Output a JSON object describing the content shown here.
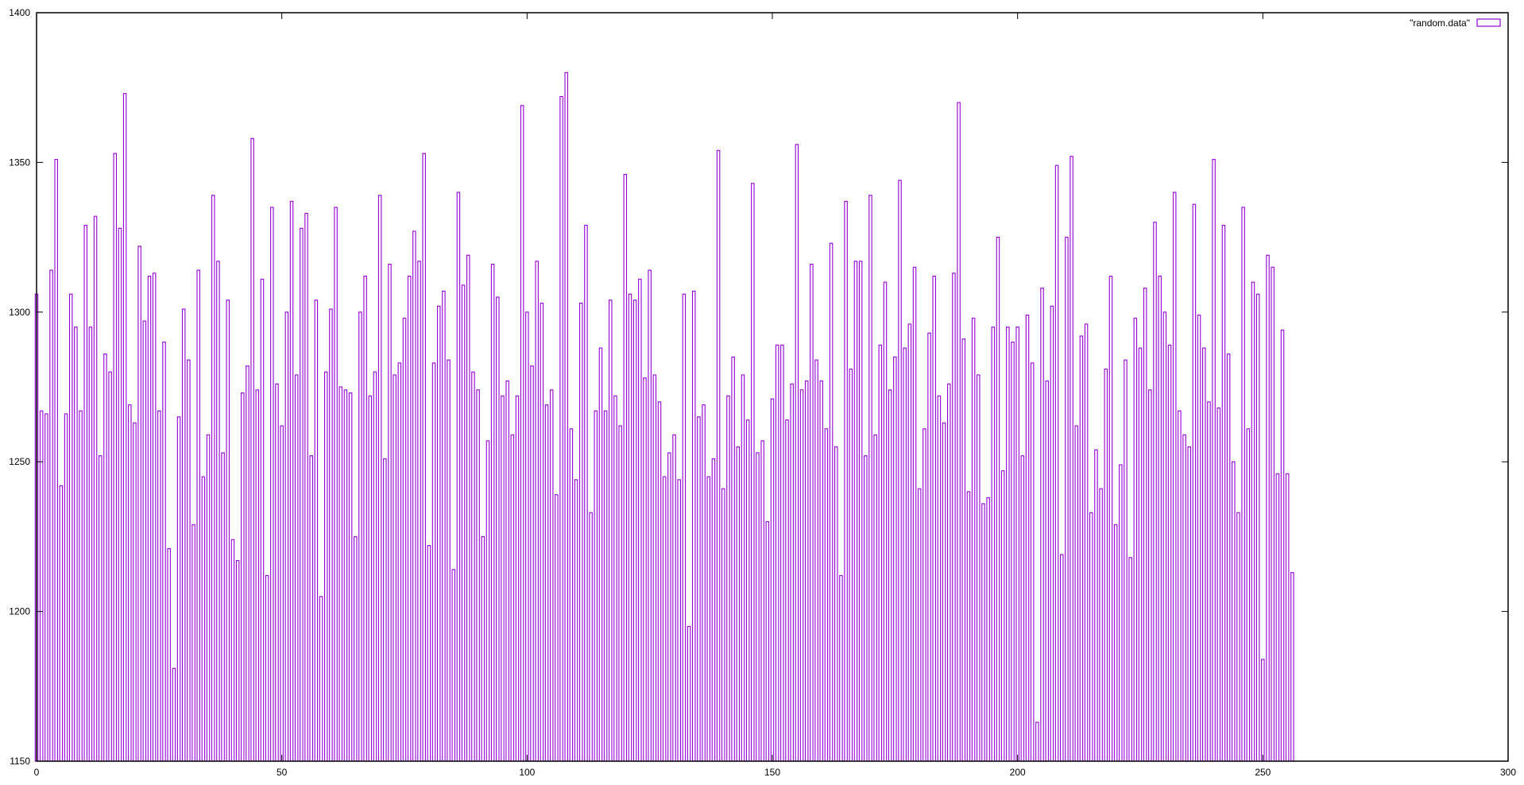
{
  "chart_data": {
    "type": "bar",
    "xlim": [
      0,
      300
    ],
    "ylim": [
      1150,
      1400
    ],
    "xticks": [
      0,
      50,
      100,
      150,
      200,
      250,
      300
    ],
    "yticks": [
      1150,
      1200,
      1250,
      1300,
      1350,
      1400
    ],
    "grid": false,
    "legend_position": "top-right",
    "bar_color": "#9400d3",
    "series": [
      {
        "name": "\"random.data\"",
        "x_start": 0,
        "values": [
          1306,
          1267,
          1266,
          1314,
          1351,
          1242,
          1266,
          1306,
          1295,
          1267,
          1329,
          1295,
          1332,
          1252,
          1286,
          1280,
          1353,
          1328,
          1373,
          1269,
          1263,
          1322,
          1297,
          1312,
          1313,
          1267,
          1290,
          1221,
          1181,
          1265,
          1301,
          1284,
          1229,
          1314,
          1245,
          1259,
          1339,
          1317,
          1253,
          1304,
          1224,
          1217,
          1273,
          1282,
          1358,
          1274,
          1311,
          1212,
          1335,
          1276,
          1262,
          1300,
          1337,
          1279,
          1328,
          1333,
          1252,
          1304,
          1205,
          1280,
          1301,
          1335,
          1275,
          1274,
          1273,
          1225,
          1300,
          1312,
          1272,
          1280,
          1339,
          1251,
          1316,
          1279,
          1283,
          1298,
          1312,
          1327,
          1317,
          1353,
          1222,
          1283,
          1302,
          1307,
          1284,
          1214,
          1340,
          1309,
          1319,
          1280,
          1274,
          1225,
          1257,
          1316,
          1305,
          1272,
          1277,
          1259,
          1272,
          1369,
          1300,
          1282,
          1317,
          1303,
          1269,
          1274,
          1239,
          1372,
          1380,
          1261,
          1244,
          1303,
          1329,
          1233,
          1267,
          1288,
          1267,
          1304,
          1272,
          1262,
          1346,
          1306,
          1304,
          1311,
          1278,
          1314,
          1279,
          1270,
          1245,
          1253,
          1259,
          1244,
          1306,
          1195,
          1307,
          1265,
          1269,
          1245,
          1251,
          1354,
          1241,
          1272,
          1285,
          1255,
          1279,
          1264,
          1343,
          1253,
          1257,
          1230,
          1271,
          1289,
          1289,
          1264,
          1276,
          1356,
          1274,
          1277,
          1316,
          1284,
          1277,
          1261,
          1323,
          1255,
          1212,
          1337,
          1281,
          1317,
          1317,
          1252,
          1339,
          1259,
          1289,
          1310,
          1274,
          1285,
          1344,
          1288,
          1296,
          1315,
          1241,
          1261,
          1293,
          1312,
          1272,
          1263,
          1276,
          1313,
          1370,
          1291,
          1240,
          1298,
          1279,
          1236,
          1238,
          1295,
          1325,
          1247,
          1295,
          1290,
          1295,
          1252,
          1299,
          1283,
          1163,
          1308,
          1277,
          1302,
          1349,
          1219,
          1325,
          1352,
          1262,
          1292,
          1296,
          1233,
          1254,
          1241,
          1281,
          1312,
          1229,
          1249,
          1284,
          1218,
          1298,
          1288,
          1308,
          1274,
          1330,
          1312,
          1300,
          1289,
          1340,
          1267,
          1259,
          1255,
          1336,
          1299,
          1288,
          1270,
          1351,
          1268,
          1329,
          1286,
          1250,
          1233,
          1335,
          1261,
          1310,
          1306,
          1184,
          1319,
          1315,
          1246,
          1294,
          1246,
          1213
        ]
      }
    ]
  }
}
